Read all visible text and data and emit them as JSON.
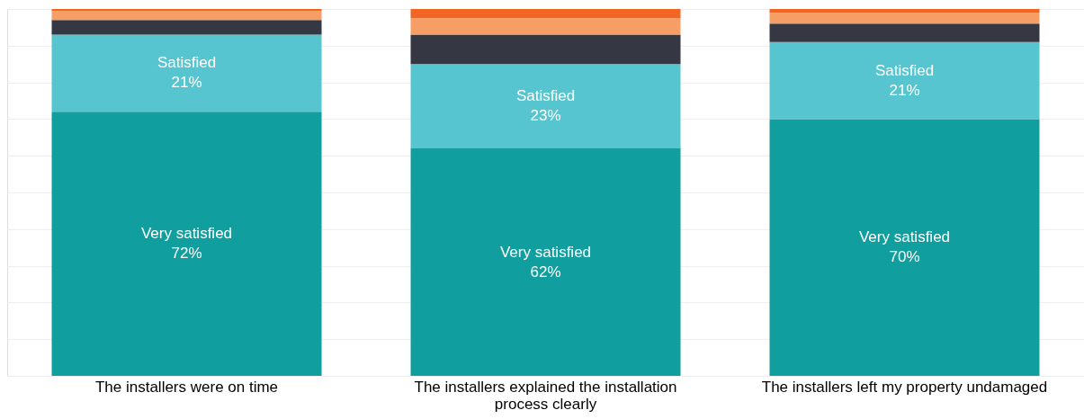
{
  "chart_data": {
    "type": "bar",
    "stacked": true,
    "categories": [
      "The installers were on time",
      "The installers explained the installation process clearly",
      "The installers left my property undamaged"
    ],
    "series": [
      {
        "name": "Very satisfied",
        "color": "#109e9e",
        "values": [
          72,
          62,
          70
        ],
        "value_labels": [
          "72%",
          "62%",
          "70%"
        ]
      },
      {
        "name": "Satisfied",
        "color": "#56c5d0",
        "values": [
          21,
          23,
          21
        ],
        "value_labels": [
          "21%",
          "23%",
          "21%"
        ]
      },
      {
        "color": "#353743",
        "values": [
          4,
          8,
          5
        ]
      },
      {
        "color": "#f79e64",
        "values": [
          2.5,
          4.5,
          3
        ]
      },
      {
        "color": "#f26522",
        "values": [
          0.5,
          2.5,
          1
        ]
      }
    ],
    "ylim": [
      0,
      100
    ],
    "yticks": [
      {
        "value": 0,
        "label": null
      },
      {
        "value": 10,
        "label": null
      },
      {
        "value": 20,
        "label": null
      },
      {
        "value": 30,
        "label": null
      },
      {
        "value": 40,
        "label": null
      },
      {
        "value": 50,
        "label": null
      },
      {
        "value": 60,
        "label": null
      },
      {
        "value": 70,
        "label": null
      },
      {
        "value": 80,
        "label": null
      },
      {
        "value": 90,
        "label": null
      },
      {
        "value": 100,
        "label": null
      }
    ],
    "grid": "y",
    "tick_labels": "x"
  }
}
